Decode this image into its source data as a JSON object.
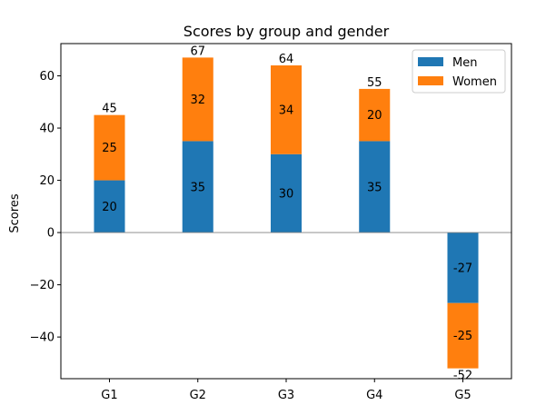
{
  "chart_data": {
    "type": "bar",
    "stacked": true,
    "title": "Scores by group and gender",
    "xlabel": "",
    "ylabel": "Scores",
    "categories": [
      "G1",
      "G2",
      "G3",
      "G4",
      "G5"
    ],
    "series": [
      {
        "name": "Men",
        "values": [
          20,
          35,
          30,
          35,
          -27
        ],
        "color": "#1f77b4"
      },
      {
        "name": "Women",
        "values": [
          25,
          32,
          34,
          20,
          -25
        ],
        "color": "#ff7f0e"
      }
    ],
    "totals": [
      45,
      67,
      64,
      55,
      -52
    ],
    "ylim": [
      -55.95,
      72.35
    ],
    "yticks": [
      -40,
      -20,
      0,
      20,
      40,
      60
    ],
    "ytick_labels": [
      "−40",
      "−20",
      "0",
      "20",
      "40",
      "60"
    ],
    "zero_line_color": "#808080",
    "legend": {
      "position": "top-right"
    },
    "grid": false
  }
}
